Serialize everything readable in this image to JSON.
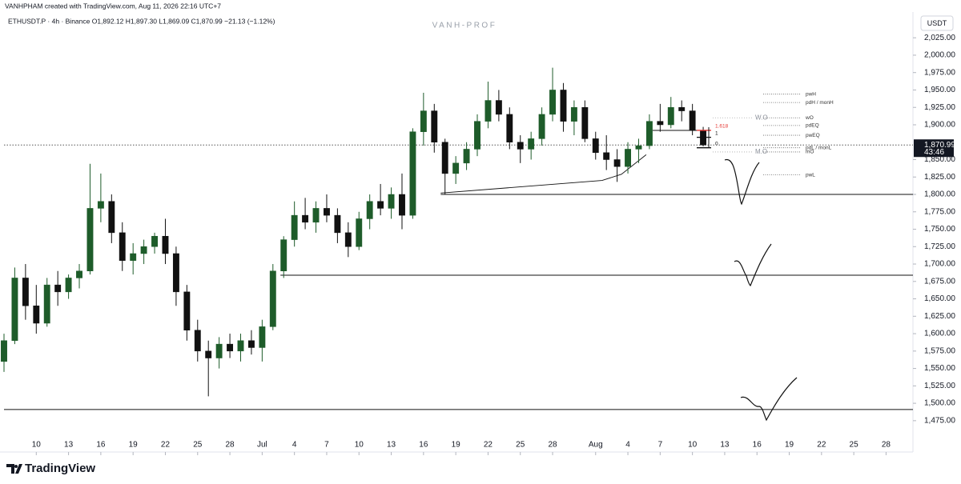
{
  "chart_data": {
    "type": "candlestick",
    "header": "VANHPHAM created with TradingView.com, Aug 11, 2026 22:16 UTC+7",
    "symbol_line": "ETHUSDT.P · 4h · Binance  O1,892.12  H1,897.30  L1,869.09  C1,870.99  −21.13 (−1.12%)",
    "watermark": "VANH-PROF",
    "currency": "USDT",
    "brand": "TradingView",
    "up_color": "#1e5c2a",
    "down_color": "#111111",
    "x": [
      7,
      8,
      9,
      10,
      11,
      12,
      13,
      14,
      15,
      16,
      17,
      18,
      19,
      20,
      21,
      22,
      23,
      24,
      25,
      26,
      27,
      28,
      29,
      30,
      31,
      32,
      33,
      34,
      35,
      36,
      37,
      38,
      39,
      40,
      41,
      42,
      43,
      44,
      45,
      46,
      47,
      48,
      49,
      50,
      51,
      52,
      53,
      54,
      55,
      56,
      57,
      58,
      59,
      60,
      61,
      62,
      63,
      64,
      65,
      66,
      67,
      68,
      69,
      70,
      71,
      72
    ],
    "open": [
      1560,
      1590,
      1680,
      1640,
      1615,
      1670,
      1660,
      1680,
      1690,
      1780,
      1790,
      1745,
      1705,
      1715,
      1725,
      1740,
      1715,
      1660,
      1605,
      1575,
      1565,
      1585,
      1575,
      1590,
      1580,
      1610,
      1690,
      1735,
      1770,
      1760,
      1780,
      1770,
      1745,
      1725,
      1765,
      1790,
      1780,
      1800,
      1770,
      1890,
      1920,
      1875,
      1830,
      1845,
      1865,
      1905,
      1935,
      1915,
      1875,
      1865,
      1880,
      1915,
      1950,
      1905,
      1925,
      1880,
      1860,
      1850,
      1840,
      1865,
      1870,
      1905,
      1900,
      1925,
      1920,
      1892
    ],
    "high": [
      1600,
      1695,
      1700,
      1670,
      1680,
      1690,
      1685,
      1700,
      1844,
      1830,
      1800,
      1760,
      1730,
      1735,
      1745,
      1765,
      1725,
      1670,
      1620,
      1590,
      1595,
      1600,
      1600,
      1605,
      1620,
      1700,
      1740,
      1790,
      1795,
      1790,
      1800,
      1780,
      1760,
      1775,
      1800,
      1815,
      1810,
      1830,
      1895,
      1946,
      1930,
      1880,
      1855,
      1875,
      1915,
      1962,
      1950,
      1925,
      1885,
      1890,
      1925,
      1982,
      1960,
      1935,
      1935,
      1890,
      1885,
      1865,
      1875,
      1880,
      1915,
      1930,
      1940,
      1935,
      1930,
      1897
    ],
    "low": [
      1545,
      1585,
      1620,
      1600,
      1610,
      1640,
      1650,
      1665,
      1685,
      1760,
      1730,
      1690,
      1685,
      1700,
      1715,
      1700,
      1640,
      1590,
      1560,
      1510,
      1550,
      1565,
      1560,
      1570,
      1560,
      1605,
      1680,
      1725,
      1750,
      1745,
      1760,
      1730,
      1710,
      1720,
      1750,
      1770,
      1765,
      1750,
      1765,
      1870,
      1860,
      1800,
      1815,
      1835,
      1855,
      1895,
      1905,
      1865,
      1845,
      1850,
      1870,
      1905,
      1890,
      1885,
      1875,
      1850,
      1835,
      1818,
      1830,
      1845,
      1865,
      1890,
      1895,
      1905,
      1885,
      1869
    ],
    "close": [
      1590,
      1680,
      1640,
      1615,
      1670,
      1660,
      1680,
      1690,
      1780,
      1790,
      1745,
      1705,
      1715,
      1725,
      1740,
      1715,
      1660,
      1605,
      1575,
      1565,
      1585,
      1575,
      1590,
      1580,
      1610,
      1690,
      1735,
      1770,
      1760,
      1780,
      1770,
      1745,
      1725,
      1765,
      1790,
      1780,
      1800,
      1770,
      1890,
      1920,
      1875,
      1830,
      1845,
      1865,
      1905,
      1935,
      1915,
      1875,
      1865,
      1880,
      1915,
      1950,
      1905,
      1925,
      1880,
      1860,
      1850,
      1840,
      1865,
      1870,
      1905,
      1900,
      1925,
      1920,
      1892,
      1871
    ],
    "xlim": [
      7,
      91.5
    ],
    "xticks": [
      10,
      13,
      16,
      19,
      22,
      25,
      28,
      {
        "value": 31,
        "label": "Jul"
      },
      {
        "value": 34,
        "label": "4"
      },
      {
        "value": 37,
        "label": "7"
      },
      {
        "value": 40,
        "label": "10"
      },
      {
        "value": 43,
        "label": "13"
      },
      {
        "value": 46,
        "label": "16"
      },
      {
        "value": 49,
        "label": "19"
      },
      {
        "value": 52,
        "label": "22"
      },
      {
        "value": 55,
        "label": "25"
      },
      {
        "value": 58,
        "label": "28"
      },
      {
        "value": 62,
        "label": "Aug"
      },
      {
        "value": 65,
        "label": "4"
      },
      {
        "value": 68,
        "label": "7"
      },
      {
        "value": 71,
        "label": "10"
      },
      {
        "value": 74,
        "label": "13"
      },
      {
        "value": 77,
        "label": "16"
      },
      {
        "value": 80,
        "label": "19"
      },
      {
        "value": 83,
        "label": "22"
      },
      {
        "value": 86,
        "label": "25"
      },
      {
        "value": 89,
        "label": "28"
      }
    ],
    "ylim": [
      1453,
      2062
    ],
    "yticks": [
      {
        "value": 2025,
        "label": "2,025.00"
      },
      {
        "value": 2000,
        "label": "2,000.00"
      },
      {
        "value": 1975,
        "label": "1,975.00"
      },
      {
        "value": 1950,
        "label": "1,950.00"
      },
      {
        "value": 1925,
        "label": "1,925.00"
      },
      {
        "value": 1900,
        "label": "1,900.00"
      },
      {
        "value": 1850,
        "label": "1,850.00"
      },
      {
        "value": 1825,
        "label": "1,825.00"
      },
      {
        "value": 1800,
        "label": "1,800.00"
      },
      {
        "value": 1775,
        "label": "1,775.00"
      },
      {
        "value": 1750,
        "label": "1,750.00"
      },
      {
        "value": 1725,
        "label": "1,725.00"
      },
      {
        "value": 1700,
        "label": "1,700.00"
      },
      {
        "value": 1675,
        "label": "1,675.00"
      },
      {
        "value": 1650,
        "label": "1,650.00"
      },
      {
        "value": 1625,
        "label": "1,625.00"
      },
      {
        "value": 1600,
        "label": "1,600.00"
      },
      {
        "value": 1575,
        "label": "1,575.00"
      },
      {
        "value": 1550,
        "label": "1,550.00"
      },
      {
        "value": 1525,
        "label": "1,525.00"
      },
      {
        "value": 1500,
        "label": "1,500.00"
      },
      {
        "value": 1475,
        "label": "1,475.00"
      }
    ],
    "last_price": {
      "value": 1870.99,
      "label": "1,870.99"
    },
    "countdown": "43:46",
    "levels": [
      {
        "price": 1800,
        "from": 47.6
      },
      {
        "price": 1684,
        "from": 32.7
      },
      {
        "price": 1491,
        "from": 7
      }
    ],
    "trendline": {
      "x": [
        47.6,
        62.6,
        64.4,
        66.7
      ],
      "y": [
        1802,
        1820,
        1829,
        1857
      ]
    },
    "annotations": [
      {
        "label": "pwH",
        "price": 1944
      },
      {
        "label": "pdH  /  monH",
        "price": 1932
      },
      {
        "label": "wO",
        "price": 1910
      },
      {
        "label": "pdEQ",
        "price": 1899
      },
      {
        "label": "pwEQ",
        "price": 1885
      },
      {
        "label": "pdL  /  monL",
        "price": 1867
      },
      {
        "label": "mO",
        "price": 1861
      },
      {
        "label": "pwL",
        "price": 1828
      }
    ],
    "markers": [
      {
        "label": "W.O",
        "price": 1910
      },
      {
        "label": "M.O",
        "price": 1861
      }
    ],
    "fib": [
      {
        "label": "1.618",
        "price": 1892,
        "color": "#e53935"
      },
      {
        "label": "1",
        "price": 1882,
        "color": "#111111"
      },
      {
        "label": "0",
        "price": 1867,
        "color": "#111111"
      }
    ]
  }
}
